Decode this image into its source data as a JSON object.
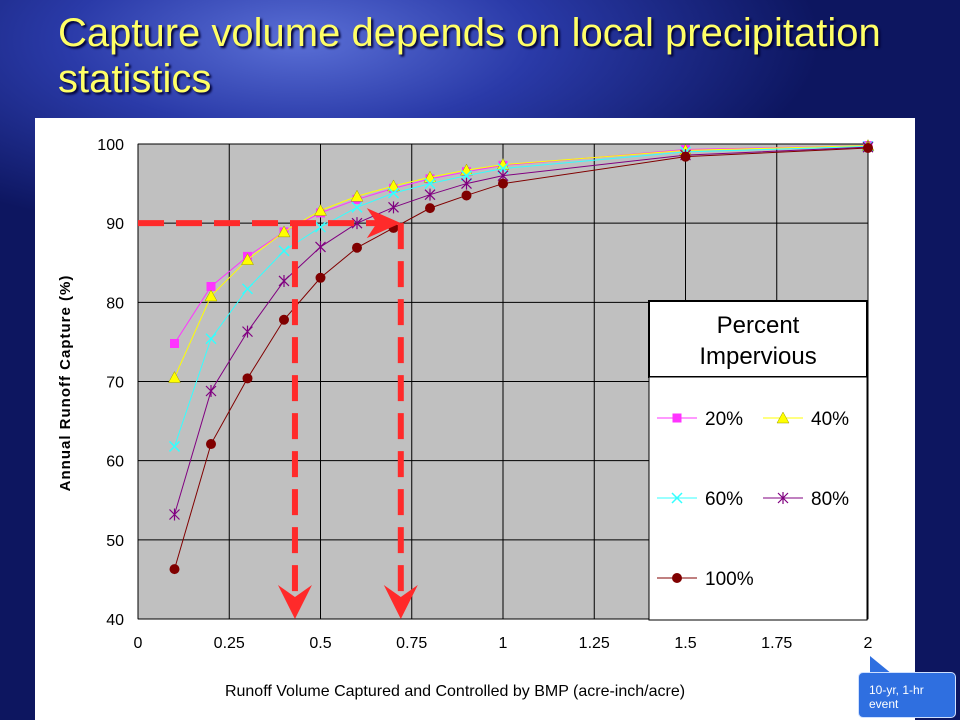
{
  "slide": {
    "title": "Capture volume depends on local precipitation statistics",
    "callout": "10-yr, 1-hr event"
  },
  "chart_data": {
    "type": "line",
    "title": "",
    "xlabel": "Runoff Volume Captured and Controlled by BMP (acre-inch/acre)",
    "ylabel": "Annual Runoff Capture (%)",
    "xlim": [
      0,
      2
    ],
    "ylim": [
      40,
      100
    ],
    "x_ticks": [
      "0",
      "0.25",
      "0.5",
      "0.75",
      "1",
      "1.25",
      "1.5",
      "1.75",
      "2"
    ],
    "y_ticks": [
      "40",
      "50",
      "60",
      "70",
      "80",
      "90",
      "100"
    ],
    "grid": true,
    "plot_background": "#c0c0c0",
    "legend_title": "Percent Impervious",
    "legend_placement": "right",
    "x": [
      0.1,
      0.2,
      0.3,
      0.4,
      0.5,
      0.6,
      0.7,
      0.8,
      0.9,
      1.0,
      1.5,
      2.0
    ],
    "series": [
      {
        "name": "20%",
        "color": "#ff33ff",
        "marker": "square",
        "values": [
          74.8,
          82.0,
          85.8,
          88.9,
          91.3,
          93.0,
          94.4,
          95.6,
          96.5,
          97.3,
          99.3,
          99.8
        ]
      },
      {
        "name": "40%",
        "color": "#ffff00",
        "marker": "triangle",
        "values": [
          70.5,
          80.8,
          85.4,
          88.9,
          91.6,
          93.4,
          94.7,
          95.8,
          96.7,
          97.4,
          99.2,
          99.8
        ]
      },
      {
        "name": "60%",
        "color": "#33ffff",
        "marker": "x",
        "values": [
          61.8,
          75.4,
          81.7,
          86.5,
          89.5,
          92.0,
          93.8,
          95.0,
          96.0,
          96.9,
          99.0,
          99.7
        ]
      },
      {
        "name": "80%",
        "color": "#800080",
        "marker": "star",
        "values": [
          53.2,
          68.8,
          76.3,
          82.7,
          87.0,
          90.0,
          92.0,
          93.6,
          95.0,
          96.0,
          98.6,
          99.6
        ]
      },
      {
        "name": "100%",
        "color": "#800000",
        "marker": "circle",
        "values": [
          46.3,
          62.1,
          70.4,
          77.8,
          83.1,
          86.9,
          89.4,
          91.9,
          93.5,
          95.0,
          98.4,
          99.5
        ]
      }
    ],
    "annotations": {
      "color": "#ff2a2a",
      "capture_level": 90,
      "drop_lines_x": [
        0.43,
        0.72
      ]
    }
  }
}
